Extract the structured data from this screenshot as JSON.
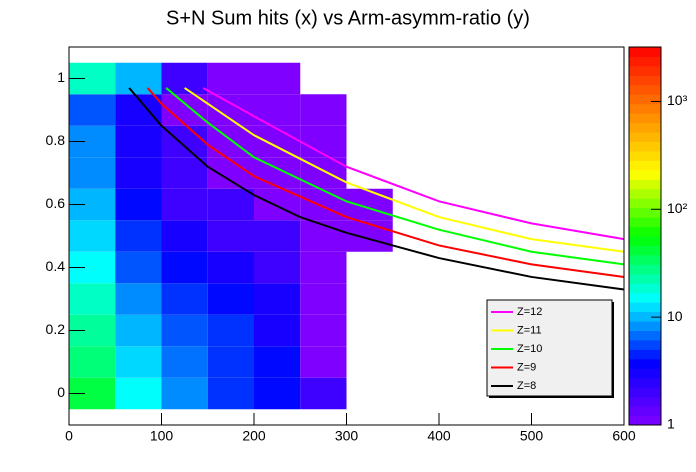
{
  "chart_data": {
    "type": "heatmap",
    "title": "S+N Sum hits (x) vs Arm-asymm-ratio (y)",
    "xlim": [
      0,
      600
    ],
    "xticks": [
      0,
      100,
      200,
      300,
      400,
      500,
      600
    ],
    "ylim": [
      -0.1,
      1.1
    ],
    "yticks": [
      0,
      0.2,
      0.4,
      0.6,
      0.8,
      1
    ],
    "zlim": [
      1,
      3200
    ],
    "zticks": [
      1,
      10,
      {
        "value": 100,
        "label": "10²"
      },
      {
        "value": 1000,
        "label": "10³"
      }
    ],
    "zlog": true,
    "colorscale": [
      "#8000ff",
      "#0000ff",
      "#00ffff",
      "#00ff00",
      "#ffff00",
      "#ff8000",
      "#ff0000"
    ],
    "heatmap": {
      "xbins": [
        0,
        50,
        100,
        150,
        200,
        250,
        300,
        350
      ],
      "ybins": [
        -0.05,
        0.05,
        0.15,
        0.25,
        0.35,
        0.45,
        0.55,
        0.65,
        0.75,
        0.85,
        0.95,
        1.05
      ],
      "z": [
        [
          40,
          15,
          8,
          5,
          4,
          2,
          0
        ],
        [
          30,
          12,
          7,
          5,
          4,
          1,
          0
        ],
        [
          25,
          10,
          6,
          5,
          3,
          1,
          0
        ],
        [
          20,
          8,
          5,
          4,
          3,
          1,
          0
        ],
        [
          15,
          6,
          4,
          3,
          2,
          1,
          0
        ],
        [
          12,
          5,
          3,
          2,
          2,
          1,
          1
        ],
        [
          10,
          4,
          2,
          2,
          1,
          1,
          1
        ],
        [
          8,
          3,
          2,
          1,
          1,
          1,
          0
        ],
        [
          8,
          3,
          2,
          1,
          1,
          1,
          0
        ],
        [
          6,
          3,
          1,
          1,
          1,
          1,
          0
        ],
        [
          20,
          10,
          2,
          1,
          1,
          0,
          0
        ]
      ]
    },
    "series": [
      {
        "name": "Z=12",
        "color": "#ff00ff",
        "x": [
          145,
          200,
          300,
          400,
          500,
          600
        ],
        "values": [
          0.97,
          0.88,
          0.72,
          0.61,
          0.54,
          0.49
        ]
      },
      {
        "name": "Z=11",
        "color": "#ffff00",
        "x": [
          125,
          150,
          200,
          300,
          400,
          500,
          600
        ],
        "values": [
          0.97,
          0.92,
          0.82,
          0.67,
          0.56,
          0.49,
          0.45
        ]
      },
      {
        "name": "Z=10",
        "color": "#00ff00",
        "x": [
          105,
          150,
          200,
          300,
          400,
          500,
          600
        ],
        "values": [
          0.97,
          0.86,
          0.75,
          0.61,
          0.52,
          0.45,
          0.41
        ]
      },
      {
        "name": "Z=9",
        "color": "#ff0000",
        "x": [
          85,
          100,
          150,
          200,
          300,
          400,
          500,
          600
        ],
        "values": [
          0.97,
          0.92,
          0.79,
          0.69,
          0.56,
          0.47,
          0.41,
          0.37
        ]
      },
      {
        "name": "Z=8",
        "color": "#000000",
        "x": [
          65,
          100,
          150,
          200,
          250,
          300,
          400,
          500,
          600
        ],
        "values": [
          0.97,
          0.85,
          0.72,
          0.63,
          0.56,
          0.51,
          0.43,
          0.37,
          0.33
        ]
      }
    ],
    "legend": "bottom-right"
  }
}
